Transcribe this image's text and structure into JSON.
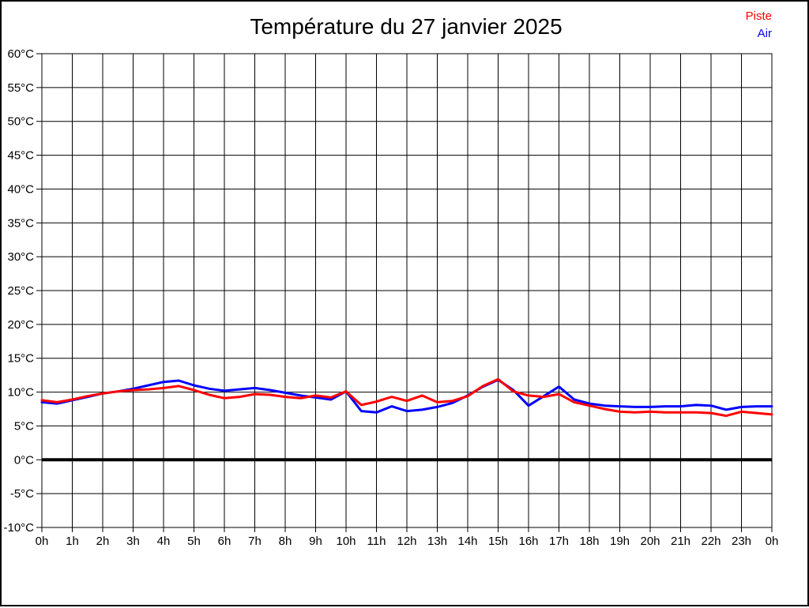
{
  "page": {
    "background": "#ffffff",
    "border_color": "#000000"
  },
  "header": {
    "title": "Température du 27 janvier 2025"
  },
  "legend": {
    "position": "top-right",
    "items": [
      {
        "label": "Piste",
        "color": "#ff0000"
      },
      {
        "label": "Air",
        "color": "#0000ff"
      }
    ]
  },
  "chart_data": {
    "type": "line",
    "title": "Température du 27 janvier 2025",
    "xlabel": "",
    "ylabel": "",
    "xlim": [
      0,
      24
    ],
    "ylim": [
      -10,
      60
    ],
    "grid": true,
    "grid_color": "#000000",
    "zero_line": {
      "value": 0,
      "width": 4,
      "color": "#000000"
    },
    "legend_position": "top-right",
    "xtick_hours": [
      0,
      1,
      2,
      3,
      4,
      5,
      6,
      7,
      8,
      9,
      10,
      11,
      12,
      13,
      14,
      15,
      16,
      17,
      18,
      19,
      20,
      21,
      22,
      23,
      24
    ],
    "xtick_labels": [
      "0h",
      "1h",
      "2h",
      "3h",
      "4h",
      "5h",
      "6h",
      "7h",
      "8h",
      "9h",
      "10h",
      "11h",
      "12h",
      "13h",
      "14h",
      "15h",
      "16h",
      "17h",
      "18h",
      "19h",
      "20h",
      "21h",
      "22h",
      "23h",
      "0h"
    ],
    "ytick_values": [
      60,
      55,
      50,
      45,
      40,
      35,
      30,
      25,
      20,
      15,
      10,
      5,
      0,
      -5,
      -10
    ],
    "ytick_labels": [
      "60°C",
      "55°C",
      "50°C",
      "45°C",
      "40°C",
      "35°C",
      "30°C",
      "25°C",
      "20°C",
      "15°C",
      "10°C",
      "5°C",
      "0°C",
      "-5°C",
      "-10°C"
    ],
    "x": [
      0,
      0.5,
      1,
      1.5,
      2,
      2.5,
      3,
      3.5,
      4,
      4.5,
      5,
      5.5,
      6,
      6.5,
      7,
      7.5,
      8,
      8.5,
      9,
      9.5,
      10,
      10.5,
      11,
      11.5,
      12,
      12.5,
      13,
      13.5,
      14,
      14.5,
      15,
      15.5,
      16,
      16.5,
      17,
      17.5,
      18,
      18.5,
      19,
      19.5,
      20,
      20.5,
      21,
      21.5,
      22,
      22.5,
      23,
      23.5,
      24
    ],
    "series": [
      {
        "name": "Piste",
        "color": "#ff0000",
        "values": [
          8.8,
          8.5,
          8.9,
          9.4,
          9.8,
          10.1,
          10.3,
          10.4,
          10.6,
          10.9,
          10.3,
          9.6,
          9.1,
          9.3,
          9.7,
          9.6,
          9.3,
          9.1,
          9.5,
          9.2,
          10.1,
          8.1,
          8.6,
          9.3,
          8.7,
          9.5,
          8.5,
          8.7,
          9.4,
          10.9,
          11.9,
          10.1,
          9.5,
          9.3,
          9.7,
          8.5,
          8.0,
          7.5,
          7.1,
          7.0,
          7.1,
          7.0,
          7.0,
          7.0,
          6.9,
          6.5,
          7.1,
          6.9,
          6.7
        ]
      },
      {
        "name": "Air",
        "color": "#0000ff",
        "values": [
          8.5,
          8.3,
          8.8,
          9.3,
          9.8,
          10.1,
          10.5,
          11.0,
          11.5,
          11.7,
          11.0,
          10.5,
          10.2,
          10.4,
          10.6,
          10.3,
          9.9,
          9.5,
          9.2,
          8.9,
          10.1,
          7.2,
          7.0,
          7.9,
          7.2,
          7.4,
          7.8,
          8.4,
          9.5,
          10.8,
          11.8,
          10.3,
          8.0,
          9.4,
          10.8,
          8.9,
          8.3,
          8.0,
          7.9,
          7.8,
          7.8,
          7.9,
          7.9,
          8.1,
          8.0,
          7.4,
          7.8,
          7.9,
          7.9
        ]
      }
    ]
  }
}
